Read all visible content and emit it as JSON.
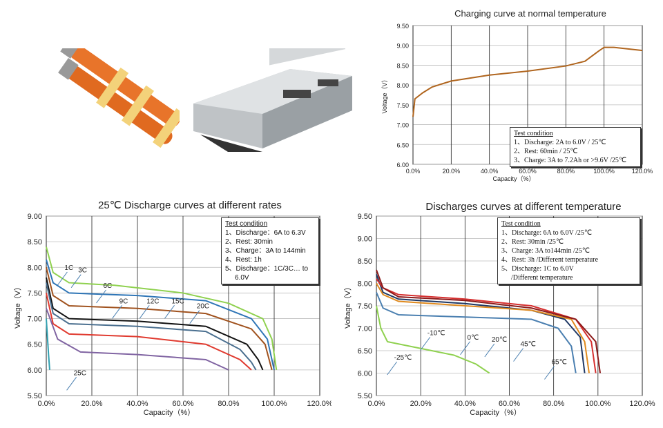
{
  "chart_data": [
    {
      "type": "line",
      "title": "Charging curve at normal temperature",
      "xlabel": "Capacity（%）",
      "ylabel": "Voltage（V）",
      "xlim": [
        0,
        120
      ],
      "ylim": [
        6.0,
        9.5
      ],
      "xticks": [
        "0.0%",
        "20.0%",
        "40.0%",
        "60.0%",
        "80.0%",
        "100.0%",
        "120.0%"
      ],
      "yticks": [
        "9.50",
        "9.00",
        "8.50",
        "8.00",
        "7.50",
        "7.00",
        "6.50",
        "6.00"
      ],
      "condition": {
        "heading": "Test condition",
        "lines": [
          "1、Discharge: 2A to 6.0V / 25℃",
          "2、Rest: 60min / 25℃",
          "3、Charge: 3A  to 7.2Ah or >9.6V /25℃"
        ]
      },
      "series": [
        {
          "name": "Charge",
          "color": "#b0651e",
          "points": [
            [
              0,
              7.2
            ],
            [
              1,
              7.65
            ],
            [
              5,
              7.8
            ],
            [
              10,
              7.95
            ],
            [
              20,
              8.1
            ],
            [
              40,
              8.25
            ],
            [
              60,
              8.35
            ],
            [
              80,
              8.48
            ],
            [
              90,
              8.6
            ],
            [
              97,
              8.85
            ],
            [
              100,
              8.95
            ],
            [
              105,
              8.95
            ],
            [
              120,
              8.87
            ]
          ]
        }
      ]
    },
    {
      "type": "line",
      "title": "25℃ Discharge curves at different rates",
      "xlabel": "Capacity（%）",
      "ylabel": "Voltage（V）",
      "xlim": [
        0,
        120
      ],
      "ylim": [
        5.5,
        9.0
      ],
      "xticks": [
        "0.0%",
        "20.0%",
        "40.0%",
        "60.0%",
        "80.0%",
        "100.0%",
        "120.0%"
      ],
      "yticks": [
        "9.00",
        "8.50",
        "8.00",
        "7.50",
        "7.00",
        "6.50",
        "6.00",
        "5.50"
      ],
      "condition": {
        "heading": "Test condition",
        "lines": [
          "1、Discharge：6A to 6.3V",
          "2、Rest: 30min",
          "3、Charge：3A  to 144min",
          "4、Rest: 1h",
          "5、Discharge：1C/3C… to",
          "6.0V"
        ]
      },
      "series": [
        {
          "name": "1C",
          "color": "#8fd14f",
          "label_at": [
            8,
            7.95
          ],
          "points": [
            [
              0,
              8.4
            ],
            [
              3,
              7.9
            ],
            [
              10,
              7.7
            ],
            [
              30,
              7.65
            ],
            [
              60,
              7.5
            ],
            [
              80,
              7.3
            ],
            [
              95,
              7.0
            ],
            [
              99,
              6.6
            ],
            [
              101,
              6.0
            ]
          ]
        },
        {
          "name": "3C",
          "color": "#2e75b6",
          "label_at": [
            14,
            7.9
          ],
          "points": [
            [
              0,
              8.15
            ],
            [
              3,
              7.7
            ],
            [
              10,
              7.5
            ],
            [
              40,
              7.45
            ],
            [
              70,
              7.35
            ],
            [
              90,
              7.0
            ],
            [
              97,
              6.6
            ],
            [
              100,
              6.0
            ]
          ]
        },
        {
          "name": "6C",
          "color": "#a0521e",
          "label_at": [
            25,
            7.6
          ],
          "points": [
            [
              0,
              8.0
            ],
            [
              3,
              7.45
            ],
            [
              10,
              7.25
            ],
            [
              40,
              7.2
            ],
            [
              70,
              7.1
            ],
            [
              90,
              6.8
            ],
            [
              96,
              6.5
            ],
            [
              99,
              6.0
            ]
          ]
        },
        {
          "name": "9C",
          "color": "#111111",
          "label_at": [
            32,
            7.3
          ],
          "points": [
            [
              0,
              7.8
            ],
            [
              3,
              7.2
            ],
            [
              10,
              7.0
            ],
            [
              40,
              6.95
            ],
            [
              70,
              6.85
            ],
            [
              88,
              6.5
            ],
            [
              93,
              6.2
            ],
            [
              95,
              6.0
            ]
          ]
        },
        {
          "name": "12C",
          "color": "#4a6f8f",
          "label_at": [
            44,
            7.3
          ],
          "points": [
            [
              0,
              7.7
            ],
            [
              3,
              7.1
            ],
            [
              10,
              6.9
            ],
            [
              40,
              6.85
            ],
            [
              70,
              6.75
            ],
            [
              85,
              6.4
            ],
            [
              90,
              6.15
            ],
            [
              92,
              6.0
            ]
          ]
        },
        {
          "name": "15C",
          "color": "#e03a2f",
          "label_at": [
            55,
            7.3
          ],
          "points": [
            [
              0,
              7.5
            ],
            [
              3,
              6.9
            ],
            [
              10,
              6.7
            ],
            [
              40,
              6.65
            ],
            [
              70,
              6.5
            ],
            [
              85,
              6.2
            ],
            [
              90,
              6.0
            ]
          ]
        },
        {
          "name": "20C",
          "color": "#8064a2",
          "label_at": [
            66,
            7.2
          ],
          "points": [
            [
              0,
              7.2
            ],
            [
              5,
              6.6
            ],
            [
              15,
              6.35
            ],
            [
              40,
              6.3
            ],
            [
              70,
              6.2
            ],
            [
              80,
              6.0
            ]
          ]
        },
        {
          "name": "25C",
          "color": "#31a0b0",
          "label_at": [
            12,
            5.9
          ],
          "points": [
            [
              0,
              7.0
            ],
            [
              1,
              6.3
            ],
            [
              1.5,
              6.0
            ]
          ]
        }
      ]
    },
    {
      "type": "line",
      "title": "Discharges curves at different temperature",
      "xlabel": "Capacity（%）",
      "ylabel": "Voltage（V）",
      "xlim": [
        0,
        120
      ],
      "ylim": [
        5.5,
        9.5
      ],
      "xticks": [
        "0.0%",
        "20.0%",
        "40.0%",
        "60.0%",
        "80.0%",
        "100.0%",
        "120.0%"
      ],
      "yticks": [
        "9.50",
        "9.00",
        "8.50",
        "8.00",
        "7.50",
        "7.00",
        "6.50",
        "6.00",
        "5.50"
      ],
      "condition": {
        "heading": "Test condition",
        "lines": [
          "1、Discharge: 6A to 6.0V /25℃",
          "2、Rest: 30min /25℃",
          "3、Charge: 3A to144min /25℃",
          "4、Rest: 3h /Different temperature",
          "5、Discharge: 1C  to 6.0V",
          "/Different temperature"
        ]
      },
      "series": [
        {
          "name": "-25℃",
          "color": "#8fd14f",
          "label_at": [
            8,
            6.3
          ],
          "points": [
            [
              0,
              7.5
            ],
            [
              2,
              7.0
            ],
            [
              5,
              6.7
            ],
            [
              20,
              6.55
            ],
            [
              35,
              6.4
            ],
            [
              45,
              6.2
            ],
            [
              51,
              6.0
            ]
          ]
        },
        {
          "name": "-10℃",
          "color": "#4a7fb0",
          "label_at": [
            23,
            6.85
          ],
          "points": [
            [
              0,
              7.8
            ],
            [
              3,
              7.45
            ],
            [
              10,
              7.3
            ],
            [
              40,
              7.25
            ],
            [
              70,
              7.2
            ],
            [
              82,
              7.0
            ],
            [
              88,
              6.6
            ],
            [
              90,
              6.0
            ]
          ]
        },
        {
          "name": "0℃",
          "color": "#1f3864",
          "label_at": [
            41,
            6.75
          ],
          "points": [
            [
              0,
              8.2
            ],
            [
              3,
              7.8
            ],
            [
              10,
              7.65
            ],
            [
              40,
              7.55
            ],
            [
              70,
              7.4
            ],
            [
              85,
              7.2
            ],
            [
              92,
              6.8
            ],
            [
              94,
              6.0
            ]
          ]
        },
        {
          "name": "20℃",
          "color": "#e08a1e",
          "label_at": [
            52,
            6.7
          ],
          "points": [
            [
              0,
              8.0
            ],
            [
              3,
              7.75
            ],
            [
              10,
              7.6
            ],
            [
              40,
              7.5
            ],
            [
              70,
              7.4
            ],
            [
              88,
              7.2
            ],
            [
              94,
              6.7
            ],
            [
              96,
              6.0
            ]
          ]
        },
        {
          "name": "45℃",
          "color": "#d62f2f",
          "label_at": [
            65,
            6.6
          ],
          "points": [
            [
              0,
              8.1
            ],
            [
              3,
              7.9
            ],
            [
              10,
              7.75
            ],
            [
              40,
              7.65
            ],
            [
              70,
              7.5
            ],
            [
              90,
              7.2
            ],
            [
              97,
              6.7
            ],
            [
              99,
              6.0
            ]
          ]
        },
        {
          "name": "65℃",
          "color": "#8b1a1a",
          "label_at": [
            79,
            6.2
          ],
          "points": [
            [
              0,
              8.3
            ],
            [
              3,
              7.9
            ],
            [
              10,
              7.7
            ],
            [
              40,
              7.62
            ],
            [
              70,
              7.45
            ],
            [
              90,
              7.2
            ],
            [
              99,
              6.7
            ],
            [
              101,
              6.0
            ]
          ]
        }
      ]
    }
  ]
}
